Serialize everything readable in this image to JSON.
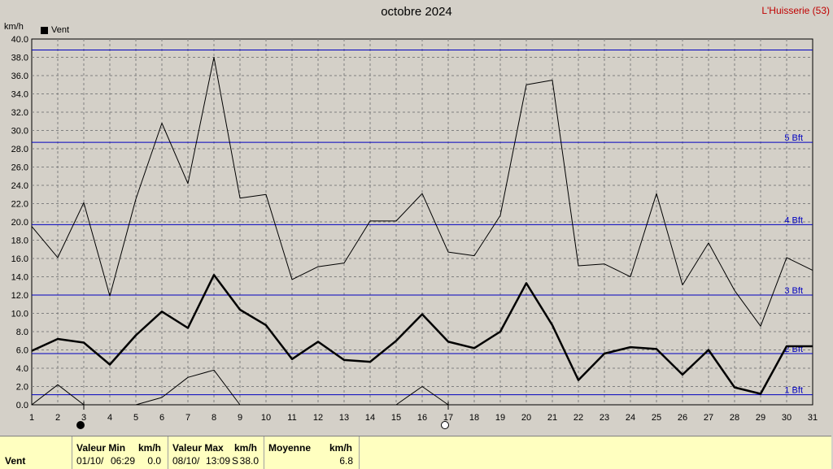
{
  "header": {
    "title": "octobre 2024",
    "station": "L'Huisserie (53)",
    "unit": "km/h",
    "legend_label": "Vent"
  },
  "chart_data": {
    "type": "line",
    "title": "octobre 2024",
    "ylabel": "km/h",
    "ylim": [
      0,
      40
    ],
    "yticks": [
      "0.0",
      "2.0",
      "4.0",
      "6.0",
      "8.0",
      "10.0",
      "12.0",
      "14.0",
      "16.0",
      "18.0",
      "20.0",
      "22.0",
      "24.0",
      "26.0",
      "28.0",
      "30.0",
      "32.0",
      "34.0",
      "36.0",
      "38.0",
      "40.0"
    ],
    "x": [
      1,
      2,
      3,
      4,
      5,
      6,
      7,
      8,
      9,
      10,
      11,
      12,
      13,
      14,
      15,
      16,
      17,
      18,
      19,
      20,
      21,
      22,
      23,
      24,
      25,
      26,
      27,
      28,
      29,
      30,
      31
    ],
    "grid": true,
    "legend_position": "top-left",
    "colors": {
      "background": "#d4d0c8",
      "grid": "#808080",
      "beaufort": "#0000c0",
      "series": "#000000"
    },
    "series": [
      {
        "name": "Vent",
        "role": "max",
        "values": [
          19.5,
          16.1,
          22.1,
          11.9,
          22.5,
          30.8,
          24.2,
          38.0,
          22.6,
          23.0,
          13.7,
          15.1,
          15.5,
          20.1,
          20.1,
          23.1,
          16.7,
          16.3,
          20.7,
          35.0,
          35.5,
          15.2,
          15.4,
          14.0,
          23.1,
          13.1,
          17.7,
          12.5,
          8.6,
          16.1,
          14.7
        ]
      },
      {
        "name": "Vent",
        "role": "mean",
        "values": [
          5.9,
          7.2,
          6.8,
          4.4,
          7.6,
          10.2,
          8.4,
          14.2,
          10.4,
          8.7,
          5.0,
          6.9,
          4.9,
          4.7,
          7.0,
          9.9,
          6.9,
          6.2,
          8.0,
          13.3,
          8.7,
          2.7,
          5.6,
          6.3,
          6.1,
          3.3,
          6.0,
          1.9,
          1.2,
          6.4,
          6.4
        ]
      },
      {
        "name": "Vent",
        "role": "min",
        "values": [
          0,
          2.2,
          0,
          null,
          0,
          0.8,
          3.0,
          3.8,
          0,
          null,
          null,
          null,
          null,
          null,
          0,
          2.0,
          0,
          null,
          null,
          null,
          null,
          null,
          null,
          null,
          null,
          null,
          null,
          null,
          null,
          null,
          null
        ]
      }
    ],
    "beaufort_lines": [
      {
        "value": 1.1,
        "label": "1 Bft"
      },
      {
        "value": 5.6,
        "label": "2 Bft"
      },
      {
        "value": 12.0,
        "label": "3 Bft"
      },
      {
        "value": 19.7,
        "label": "4 Bft"
      },
      {
        "value": 28.7,
        "label": "5 Bft"
      },
      {
        "value": 38.8,
        "label": ""
      }
    ],
    "moon_phases": [
      {
        "day": 3,
        "phase": "new"
      },
      {
        "day": 17,
        "phase": "full"
      }
    ]
  },
  "summary": {
    "row_label": "Vent",
    "min_header": "Valeur Min",
    "min_unit": "km/h",
    "min_date": "01/10/",
    "min_time": "06:29",
    "min_value": "0.0",
    "max_header": "Valeur Max",
    "max_unit": "km/h",
    "max_date": "08/10/",
    "max_time": "13:09",
    "max_dir": "S",
    "max_value": "38.0",
    "mean_header": "Moyenne",
    "mean_unit": "km/h",
    "mean_value": "6.8"
  }
}
